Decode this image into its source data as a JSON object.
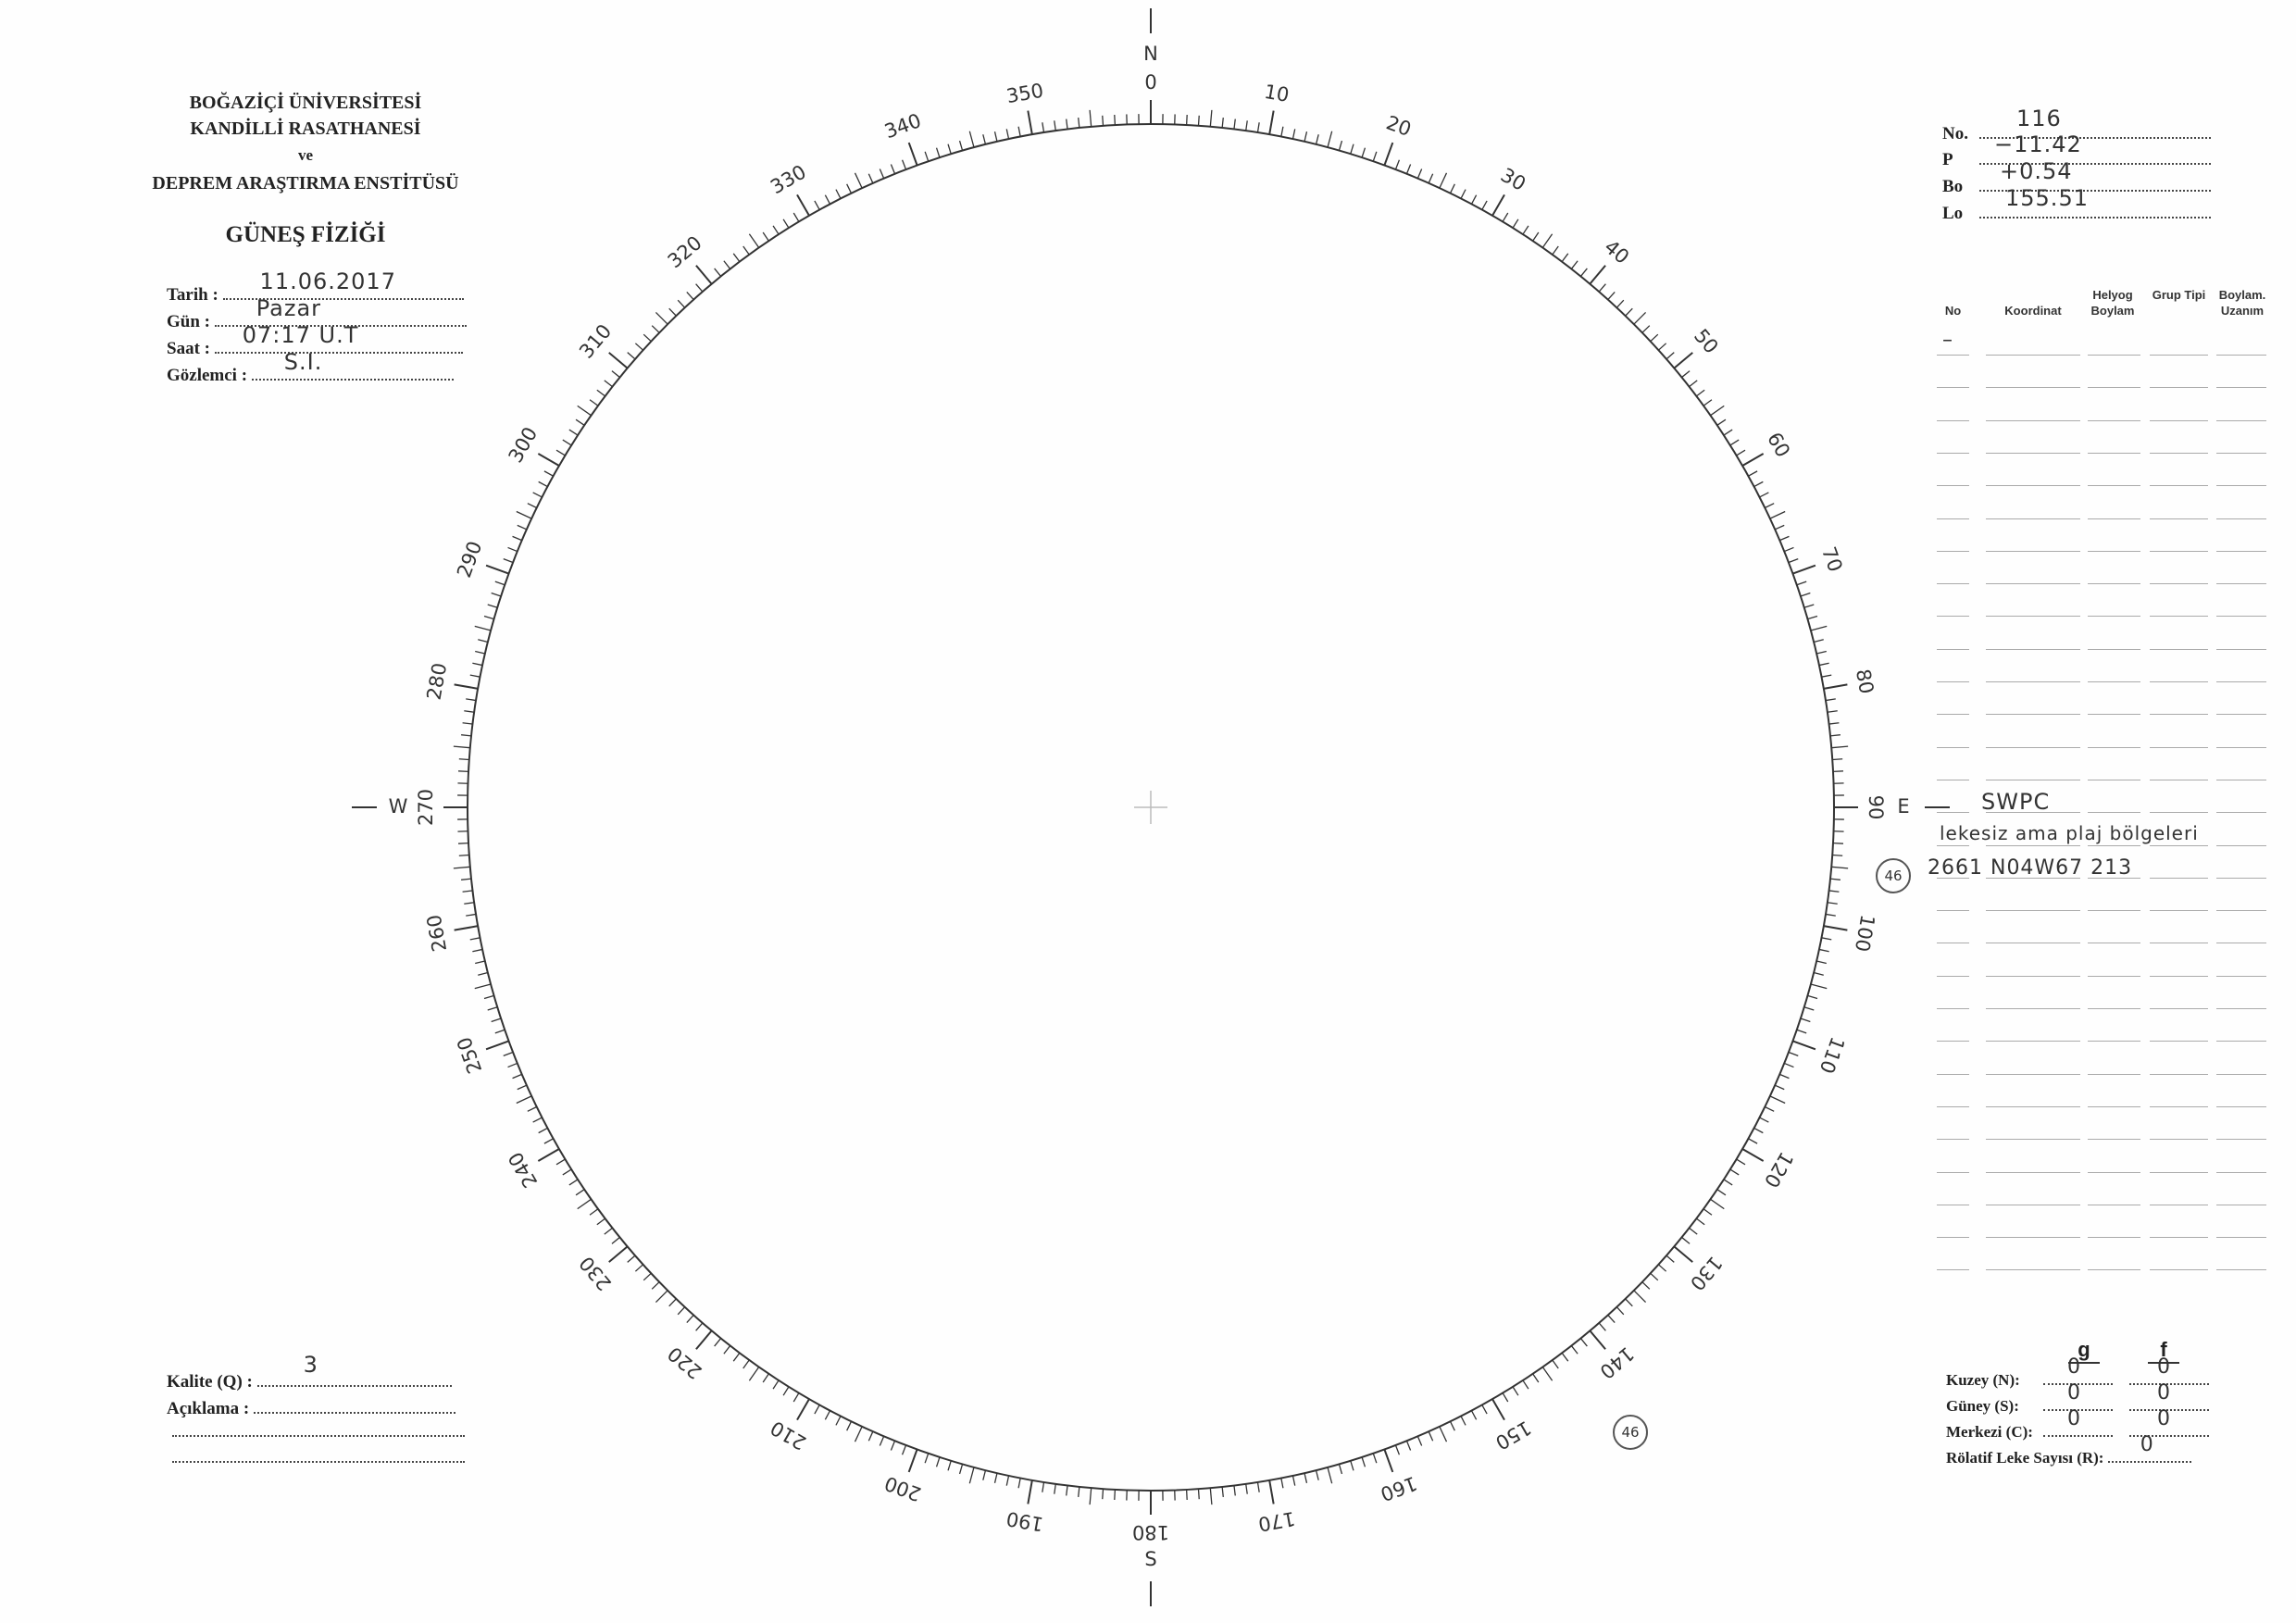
{
  "institution": {
    "line1": "BOĞAZİÇİ ÜNİVERSİTESİ",
    "line2": "KANDİLLİ RASATHANESİ",
    "line3": "ve",
    "line4": "DEPREM ARAŞTIRMA ENSTİTÜSÜ"
  },
  "form_title": "GÜNEŞ FİZİĞİ",
  "fields": {
    "tarih": {
      "label": "Tarih :",
      "value": "11.06.2017"
    },
    "gun": {
      "label": "Gün :",
      "value": "Pazar"
    },
    "saat": {
      "label": "Saat :",
      "value": "07:17 U.T"
    },
    "gozlemci": {
      "label": "Gözlemci :",
      "value": "S.I."
    }
  },
  "params": {
    "no": {
      "label": "No.",
      "value": "116"
    },
    "p": {
      "label": "P",
      "value": "−11.42"
    },
    "bo": {
      "label": "Bo",
      "value": "+0.54"
    },
    "lo": {
      "label": "Lo",
      "value": "155.51"
    }
  },
  "table": {
    "headers": [
      "No",
      "Koordinat",
      "Helyog Boylam",
      "Grup Tipi",
      "Boylam. Uzanım"
    ],
    "first_row_no": "–"
  },
  "notes": {
    "source": "SWPC",
    "remark": "lekesiz ama plaj bölgeleri",
    "group_circle": "46",
    "group_line": "2661 N04W67 213"
  },
  "dial": {
    "directions": {
      "north": "N",
      "south": "S",
      "east": "E",
      "west": "W"
    },
    "labels": [
      "0",
      "10",
      "20",
      "30",
      "40",
      "50",
      "60",
      "70",
      "80",
      "90",
      "100",
      "110",
      "120",
      "130",
      "140",
      "150",
      "160",
      "170",
      "180",
      "190",
      "200",
      "210",
      "220",
      "230",
      "240",
      "250",
      "260",
      "270",
      "280",
      "290",
      "300",
      "310",
      "320",
      "330",
      "340",
      "350"
    ],
    "marker": "46"
  },
  "quality": {
    "kalite": {
      "label": "Kalite (Q) :",
      "value": "3"
    },
    "aciklama": {
      "label": "Açıklama :",
      "value": ""
    }
  },
  "counts": {
    "col_g": "g",
    "col_f": "f",
    "kuzey": {
      "label": "Kuzey (N):",
      "g": "0",
      "f": "0"
    },
    "guney": {
      "label": "Güney (S):",
      "g": "0",
      "f": "0"
    },
    "merkezi": {
      "label": "Merkezi (C):",
      "g": "0",
      "f": "0"
    },
    "relative": {
      "label": "Rölatif Leke Sayısı (R):",
      "value": "0"
    }
  }
}
